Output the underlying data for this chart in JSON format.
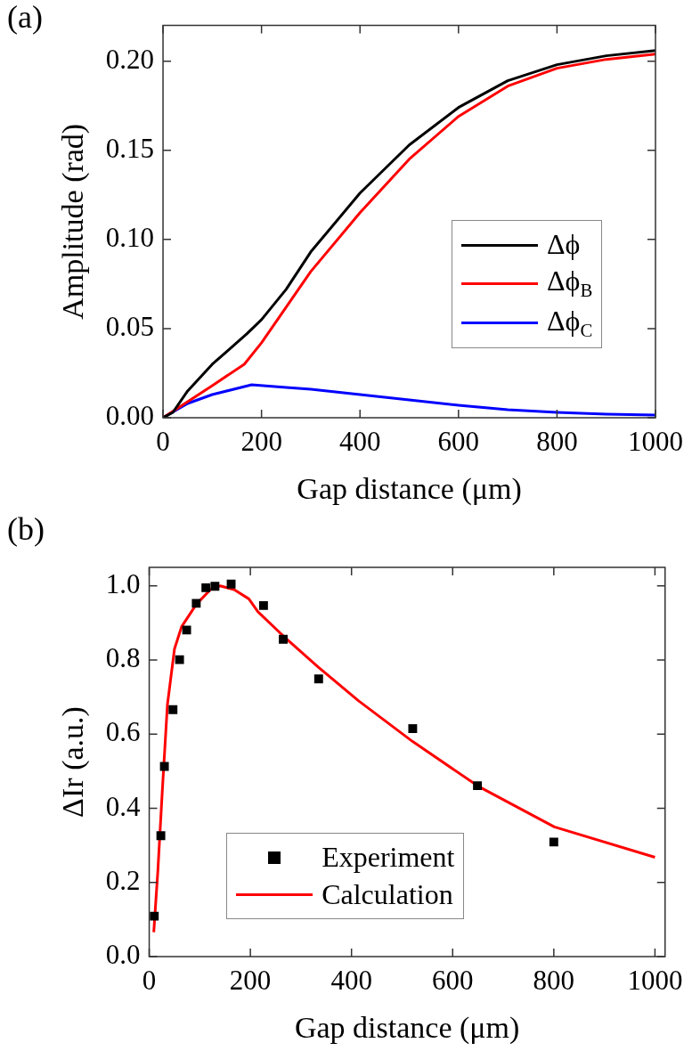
{
  "chart_data": [
    {
      "type": "line",
      "title": "(a)",
      "xlabel": "Gap distance (μm)",
      "ylabel": "Amplitude (rad)",
      "xlim": [
        0,
        1000
      ],
      "xticks": [
        0,
        200,
        400,
        600,
        800,
        1000
      ],
      "ylim": [
        0,
        0.22
      ],
      "yticks": [
        {
          "value": 0,
          "label": "0.00"
        },
        0.05,
        {
          "value": 0.1,
          "label": "0.10"
        },
        0.15,
        {
          "value": 0.2,
          "label": "0.20"
        }
      ],
      "grid": false,
      "legend": "right",
      "marker": "none",
      "line_style": "solid",
      "series": [
        {
          "name": "Δϕ",
          "color": "#000000",
          "x": [
            0,
            20,
            50,
            100,
            170,
            200,
            250,
            300,
            400,
            500,
            600,
            700,
            800,
            900,
            1000
          ],
          "values": [
            0,
            0.003,
            0.015,
            0.03,
            0.047,
            0.055,
            0.072,
            0.093,
            0.126,
            0.153,
            0.174,
            0.189,
            0.198,
            0.203,
            0.206
          ]
        },
        {
          "name": "Δϕ$_{B}$",
          "color": "#ff0000",
          "x": [
            0,
            50,
            100,
            165,
            200,
            250,
            300,
            400,
            500,
            600,
            700,
            800,
            900,
            1000
          ],
          "values": [
            0,
            0.009,
            0.018,
            0.03,
            0.042,
            0.062,
            0.082,
            0.115,
            0.145,
            0.169,
            0.186,
            0.196,
            0.201,
            0.204
          ]
        },
        {
          "name": "Δϕ$_{C}$",
          "color": "#0000ff",
          "x": [
            0,
            50,
            100,
            180,
            250,
            300,
            400,
            500,
            600,
            700,
            800,
            900,
            1000
          ],
          "values": [
            0,
            0.008,
            0.013,
            0.0185,
            0.017,
            0.016,
            0.013,
            0.01,
            0.007,
            0.0045,
            0.003,
            0.002,
            0.0015
          ]
        }
      ]
    },
    {
      "type": "scatter",
      "title": "(b)",
      "xlabel": "Gap distance (μm)",
      "ylabel": "ΔIr (a.u.)",
      "xlim": [
        0,
        1020
      ],
      "xticks": [
        0,
        200,
        400,
        600,
        800,
        1000
      ],
      "ylim": [
        0,
        1.05
      ],
      "yticks": [
        {
          "value": 0,
          "label": "0.0"
        },
        0.2,
        0.4,
        0.6,
        0.8,
        {
          "value": 1,
          "label": "1.0"
        }
      ],
      "grid": false,
      "legend": "bottom",
      "series": [
        {
          "name": "Experiment",
          "type": "scatter",
          "marker": "square",
          "color": "#000000",
          "x": [
            10,
            23,
            30,
            47,
            60,
            74,
            93,
            112,
            130,
            162,
            226,
            265,
            335,
            521,
            649,
            800
          ],
          "values": [
            0.109,
            0.326,
            0.513,
            0.666,
            0.801,
            0.881,
            0.953,
            0.995,
            0.999,
            1.005,
            0.947,
            0.856,
            0.749,
            0.615,
            0.461,
            0.309
          ]
        },
        {
          "name": "Calculation",
          "type": "line",
          "marker": "none",
          "line_style": "solid",
          "color": "#ff0000",
          "x": [
            9,
            17,
            26,
            36,
            50,
            64,
            93,
            121,
            140,
            168,
            197,
            215,
            272,
            335,
            414,
            521,
            650,
            801,
            1000
          ],
          "values": [
            0.066,
            0.23,
            0.45,
            0.68,
            0.83,
            0.89,
            0.95,
            0.99,
            1.0,
            0.99,
            0.965,
            0.93,
            0.856,
            0.78,
            0.69,
            0.58,
            0.46,
            0.35,
            0.268
          ]
        }
      ]
    }
  ]
}
